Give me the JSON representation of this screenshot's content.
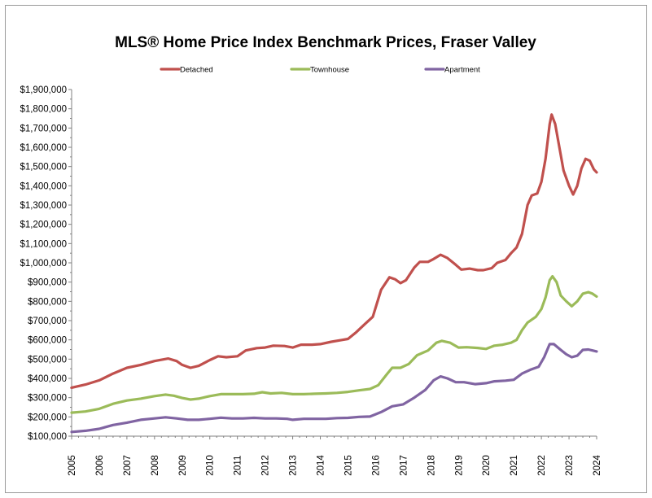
{
  "chart_data": {
    "type": "line",
    "title": "MLS® Home Price Index Benchmark Prices, Fraser Valley",
    "xlabel": "",
    "ylabel": "",
    "ylim": [
      100000,
      1900000
    ],
    "xlim": [
      2005,
      2024
    ],
    "grid": false,
    "legend_position": "top",
    "y_ticks": [
      "$100,000",
      "$200,000",
      "$300,000",
      "$400,000",
      "$500,000",
      "$600,000",
      "$700,000",
      "$800,000",
      "$900,000",
      "$1,000,000",
      "$1,100,000",
      "$1,200,000",
      "$1,300,000",
      "$1,400,000",
      "$1,500,000",
      "$1,600,000",
      "$1,700,000",
      "$1,800,000",
      "$1,900,000"
    ],
    "x_ticks": [
      "2005",
      "2006",
      "2007",
      "2008",
      "2009",
      "2010",
      "2011",
      "2012",
      "2013",
      "2014",
      "2015",
      "2016",
      "2017",
      "2018",
      "2019",
      "2020",
      "2021",
      "2022",
      "2023",
      "2024"
    ],
    "series": [
      {
        "name": "Detached",
        "color": "#c0504d",
        "points": [
          [
            2005.0,
            352000
          ],
          [
            2005.5,
            368000
          ],
          [
            2006.0,
            390000
          ],
          [
            2006.5,
            425000
          ],
          [
            2007.0,
            455000
          ],
          [
            2007.5,
            470000
          ],
          [
            2008.0,
            490000
          ],
          [
            2008.5,
            503000
          ],
          [
            2008.8,
            490000
          ],
          [
            2009.0,
            470000
          ],
          [
            2009.3,
            455000
          ],
          [
            2009.6,
            465000
          ],
          [
            2010.0,
            495000
          ],
          [
            2010.3,
            515000
          ],
          [
            2010.6,
            510000
          ],
          [
            2011.0,
            515000
          ],
          [
            2011.3,
            545000
          ],
          [
            2011.7,
            557000
          ],
          [
            2012.0,
            560000
          ],
          [
            2012.3,
            570000
          ],
          [
            2012.7,
            568000
          ],
          [
            2013.0,
            560000
          ],
          [
            2013.3,
            575000
          ],
          [
            2013.7,
            575000
          ],
          [
            2014.0,
            578000
          ],
          [
            2014.4,
            590000
          ],
          [
            2014.8,
            600000
          ],
          [
            2015.0,
            605000
          ],
          [
            2015.3,
            640000
          ],
          [
            2015.6,
            680000
          ],
          [
            2015.9,
            720000
          ],
          [
            2016.2,
            860000
          ],
          [
            2016.5,
            925000
          ],
          [
            2016.7,
            915000
          ],
          [
            2016.9,
            895000
          ],
          [
            2017.1,
            910000
          ],
          [
            2017.4,
            975000
          ],
          [
            2017.6,
            1005000
          ],
          [
            2017.9,
            1005000
          ],
          [
            2018.1,
            1020000
          ],
          [
            2018.35,
            1042000
          ],
          [
            2018.6,
            1025000
          ],
          [
            2018.9,
            990000
          ],
          [
            2019.1,
            965000
          ],
          [
            2019.4,
            970000
          ],
          [
            2019.7,
            962000
          ],
          [
            2019.9,
            962000
          ],
          [
            2020.2,
            972000
          ],
          [
            2020.4,
            1000000
          ],
          [
            2020.7,
            1015000
          ],
          [
            2020.9,
            1050000
          ],
          [
            2021.1,
            1080000
          ],
          [
            2021.3,
            1150000
          ],
          [
            2021.5,
            1300000
          ],
          [
            2021.65,
            1350000
          ],
          [
            2021.85,
            1360000
          ],
          [
            2022.0,
            1420000
          ],
          [
            2022.15,
            1540000
          ],
          [
            2022.3,
            1720000
          ],
          [
            2022.37,
            1770000
          ],
          [
            2022.5,
            1720000
          ],
          [
            2022.65,
            1600000
          ],
          [
            2022.8,
            1480000
          ],
          [
            2023.0,
            1400000
          ],
          [
            2023.15,
            1355000
          ],
          [
            2023.3,
            1400000
          ],
          [
            2023.45,
            1490000
          ],
          [
            2023.6,
            1540000
          ],
          [
            2023.75,
            1530000
          ],
          [
            2023.9,
            1485000
          ],
          [
            2024.0,
            1470000
          ]
        ]
      },
      {
        "name": "Townhouse",
        "color": "#9bbb59",
        "points": [
          [
            2005.0,
            222000
          ],
          [
            2005.5,
            228000
          ],
          [
            2006.0,
            242000
          ],
          [
            2006.5,
            268000
          ],
          [
            2007.0,
            285000
          ],
          [
            2007.5,
            295000
          ],
          [
            2008.0,
            308000
          ],
          [
            2008.4,
            316000
          ],
          [
            2008.7,
            310000
          ],
          [
            2009.0,
            298000
          ],
          [
            2009.3,
            290000
          ],
          [
            2009.6,
            295000
          ],
          [
            2010.0,
            308000
          ],
          [
            2010.4,
            318000
          ],
          [
            2010.8,
            318000
          ],
          [
            2011.2,
            318000
          ],
          [
            2011.6,
            320000
          ],
          [
            2011.9,
            328000
          ],
          [
            2012.2,
            322000
          ],
          [
            2012.6,
            325000
          ],
          [
            2013.0,
            318000
          ],
          [
            2013.4,
            318000
          ],
          [
            2013.8,
            320000
          ],
          [
            2014.2,
            322000
          ],
          [
            2014.6,
            325000
          ],
          [
            2015.0,
            330000
          ],
          [
            2015.4,
            338000
          ],
          [
            2015.8,
            345000
          ],
          [
            2016.1,
            365000
          ],
          [
            2016.4,
            420000
          ],
          [
            2016.6,
            455000
          ],
          [
            2016.9,
            455000
          ],
          [
            2017.2,
            475000
          ],
          [
            2017.5,
            520000
          ],
          [
            2017.9,
            545000
          ],
          [
            2018.2,
            585000
          ],
          [
            2018.4,
            595000
          ],
          [
            2018.7,
            585000
          ],
          [
            2019.0,
            560000
          ],
          [
            2019.3,
            562000
          ],
          [
            2019.7,
            558000
          ],
          [
            2020.0,
            553000
          ],
          [
            2020.3,
            570000
          ],
          [
            2020.6,
            575000
          ],
          [
            2020.9,
            585000
          ],
          [
            2021.1,
            600000
          ],
          [
            2021.3,
            650000
          ],
          [
            2021.5,
            690000
          ],
          [
            2021.8,
            720000
          ],
          [
            2022.0,
            760000
          ],
          [
            2022.15,
            820000
          ],
          [
            2022.3,
            910000
          ],
          [
            2022.4,
            930000
          ],
          [
            2022.55,
            900000
          ],
          [
            2022.7,
            830000
          ],
          [
            2022.9,
            800000
          ],
          [
            2023.1,
            775000
          ],
          [
            2023.3,
            800000
          ],
          [
            2023.5,
            840000
          ],
          [
            2023.7,
            848000
          ],
          [
            2023.85,
            840000
          ],
          [
            2024.0,
            825000
          ]
        ]
      },
      {
        "name": "Apartment",
        "color": "#8064a2",
        "points": [
          [
            2005.0,
            122000
          ],
          [
            2005.5,
            128000
          ],
          [
            2006.0,
            138000
          ],
          [
            2006.5,
            158000
          ],
          [
            2007.0,
            170000
          ],
          [
            2007.5,
            185000
          ],
          [
            2008.0,
            192000
          ],
          [
            2008.4,
            198000
          ],
          [
            2008.8,
            192000
          ],
          [
            2009.2,
            185000
          ],
          [
            2009.6,
            185000
          ],
          [
            2010.0,
            190000
          ],
          [
            2010.4,
            196000
          ],
          [
            2010.8,
            192000
          ],
          [
            2011.2,
            192000
          ],
          [
            2011.6,
            195000
          ],
          [
            2012.0,
            192000
          ],
          [
            2012.4,
            192000
          ],
          [
            2012.8,
            190000
          ],
          [
            2013.0,
            185000
          ],
          [
            2013.4,
            190000
          ],
          [
            2013.8,
            190000
          ],
          [
            2014.2,
            190000
          ],
          [
            2014.6,
            194000
          ],
          [
            2015.0,
            195000
          ],
          [
            2015.4,
            200000
          ],
          [
            2015.8,
            202000
          ],
          [
            2016.2,
            225000
          ],
          [
            2016.6,
            255000
          ],
          [
            2017.0,
            265000
          ],
          [
            2017.4,
            300000
          ],
          [
            2017.8,
            340000
          ],
          [
            2018.1,
            390000
          ],
          [
            2018.35,
            410000
          ],
          [
            2018.6,
            400000
          ],
          [
            2018.9,
            380000
          ],
          [
            2019.2,
            380000
          ],
          [
            2019.6,
            370000
          ],
          [
            2020.0,
            375000
          ],
          [
            2020.3,
            385000
          ],
          [
            2020.7,
            388000
          ],
          [
            2021.0,
            393000
          ],
          [
            2021.3,
            425000
          ],
          [
            2021.6,
            445000
          ],
          [
            2021.9,
            460000
          ],
          [
            2022.1,
            510000
          ],
          [
            2022.3,
            578000
          ],
          [
            2022.45,
            578000
          ],
          [
            2022.7,
            548000
          ],
          [
            2022.9,
            525000
          ],
          [
            2023.1,
            510000
          ],
          [
            2023.3,
            518000
          ],
          [
            2023.5,
            548000
          ],
          [
            2023.7,
            550000
          ],
          [
            2023.85,
            545000
          ],
          [
            2024.0,
            540000
          ]
        ]
      }
    ]
  }
}
